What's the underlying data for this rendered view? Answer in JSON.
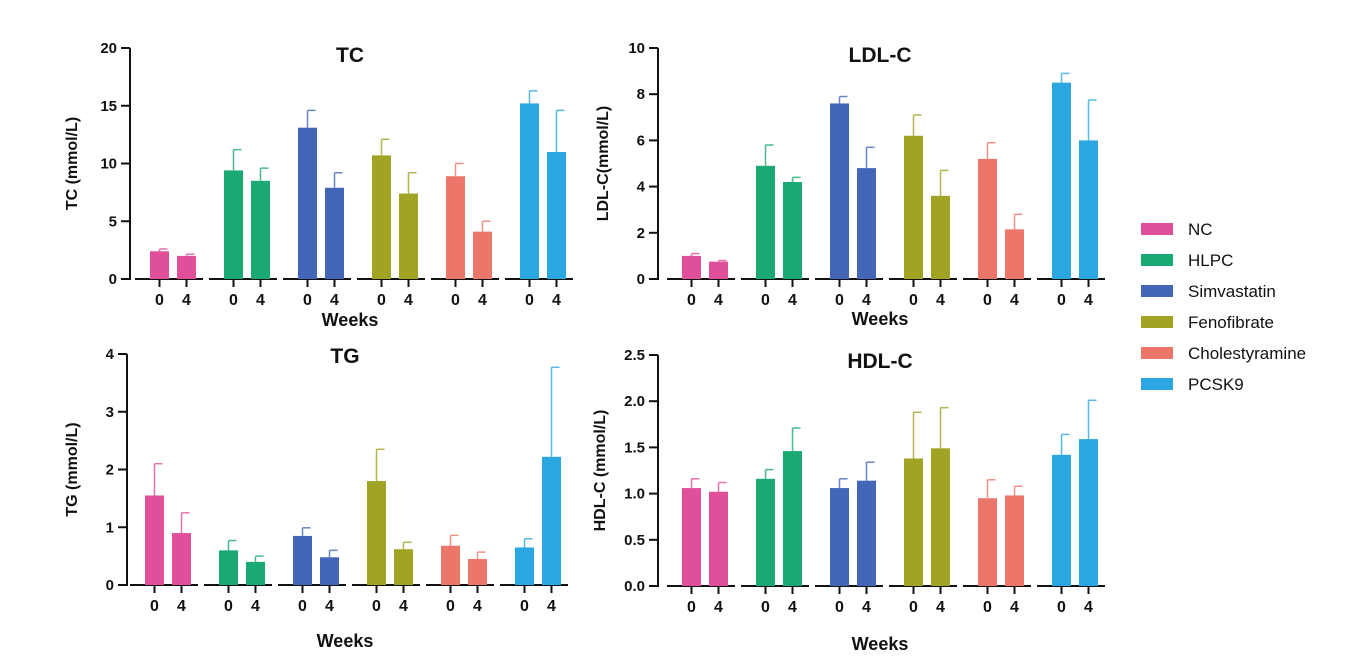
{
  "chart_data": [
    {
      "type": "bar",
      "title": "TC",
      "ylabel": "TC (mmol/L)",
      "xlabel": "Weeks",
      "ylim": [
        0,
        20
      ],
      "yticks": [
        0,
        5,
        10,
        15,
        20
      ],
      "ytick_labels": [
        "0",
        "5",
        "10",
        "15",
        "20"
      ],
      "categories": [
        "0",
        "4"
      ],
      "series": [
        {
          "name": "NC",
          "values": [
            2.4,
            2.0
          ],
          "errors": [
            0.2,
            0.15
          ]
        },
        {
          "name": "HLPC",
          "values": [
            9.4,
            8.5
          ],
          "errors": [
            1.8,
            1.1
          ]
        },
        {
          "name": "Simvastatin",
          "values": [
            13.1,
            7.9
          ],
          "errors": [
            1.5,
            1.3
          ]
        },
        {
          "name": "Fenofibrate",
          "values": [
            10.7,
            7.4
          ],
          "errors": [
            1.4,
            1.8
          ]
        },
        {
          "name": "Cholestyramine",
          "values": [
            8.9,
            4.1
          ],
          "errors": [
            1.1,
            0.9
          ]
        },
        {
          "name": "PCSK9",
          "values": [
            15.2,
            11.0
          ],
          "errors": [
            1.1,
            3.6
          ]
        }
      ]
    },
    {
      "type": "bar",
      "title": "LDL-C",
      "ylabel": "LDL-C(mmol/L)",
      "xlabel": "Weeks",
      "ylim": [
        0,
        10
      ],
      "yticks": [
        0,
        2,
        4,
        6,
        8,
        10
      ],
      "ytick_labels": [
        "0",
        "2",
        "4",
        "6",
        "8",
        "10"
      ],
      "categories": [
        "0",
        "4"
      ],
      "series": [
        {
          "name": "NC",
          "values": [
            1.0,
            0.75
          ],
          "errors": [
            0.1,
            0.05
          ]
        },
        {
          "name": "HLPC",
          "values": [
            4.9,
            4.2
          ],
          "errors": [
            0.9,
            0.2
          ]
        },
        {
          "name": "Simvastatin",
          "values": [
            7.6,
            4.8
          ],
          "errors": [
            0.3,
            0.9
          ]
        },
        {
          "name": "Fenofibrate",
          "values": [
            6.2,
            3.6
          ],
          "errors": [
            0.9,
            1.1
          ]
        },
        {
          "name": "Cholestyramine",
          "values": [
            5.2,
            2.15
          ],
          "errors": [
            0.7,
            0.65
          ]
        },
        {
          "name": "PCSK9",
          "values": [
            8.5,
            6.0
          ],
          "errors": [
            0.4,
            1.75
          ]
        }
      ]
    },
    {
      "type": "bar",
      "title": "TG",
      "ylabel": "TG (mmol/L)",
      "xlabel": "Weeks",
      "ylim": [
        0,
        4
      ],
      "yticks": [
        0,
        1,
        2,
        3,
        4
      ],
      "ytick_labels": [
        "0",
        "1",
        "2",
        "3",
        "4"
      ],
      "categories": [
        "0",
        "4"
      ],
      "series": [
        {
          "name": "NC",
          "values": [
            1.55,
            0.9
          ],
          "errors": [
            0.55,
            0.35
          ]
        },
        {
          "name": "HLPC",
          "values": [
            0.6,
            0.4
          ],
          "errors": [
            0.17,
            0.1
          ]
        },
        {
          "name": "Simvastatin",
          "values": [
            0.85,
            0.48
          ],
          "errors": [
            0.14,
            0.12
          ]
        },
        {
          "name": "Fenofibrate",
          "values": [
            1.8,
            0.62
          ],
          "errors": [
            0.55,
            0.12
          ]
        },
        {
          "name": "Cholestyramine",
          "values": [
            0.68,
            0.45
          ],
          "errors": [
            0.18,
            0.12
          ]
        },
        {
          "name": "PCSK9",
          "values": [
            0.65,
            2.22
          ],
          "errors": [
            0.15,
            1.55
          ]
        }
      ]
    },
    {
      "type": "bar",
      "title": "HDL-C",
      "ylabel": "HDL-C (mmol/L)",
      "xlabel": "Weeks",
      "ylim": [
        0,
        2.5
      ],
      "yticks": [
        0,
        0.5,
        1.0,
        1.5,
        2.0,
        2.5
      ],
      "ytick_labels": [
        "0.0",
        "0.5",
        "1.0",
        "1.5",
        "2.0",
        "2.5"
      ],
      "categories": [
        "0",
        "4"
      ],
      "series": [
        {
          "name": "NC",
          "values": [
            1.06,
            1.02
          ],
          "errors": [
            0.1,
            0.1
          ]
        },
        {
          "name": "HLPC",
          "values": [
            1.16,
            1.46
          ],
          "errors": [
            0.1,
            0.25
          ]
        },
        {
          "name": "Simvastatin",
          "values": [
            1.06,
            1.14
          ],
          "errors": [
            0.1,
            0.2
          ]
        },
        {
          "name": "Fenofibrate",
          "values": [
            1.38,
            1.49
          ],
          "errors": [
            0.5,
            0.44
          ]
        },
        {
          "name": "Cholestyramine",
          "values": [
            0.95,
            0.98
          ],
          "errors": [
            0.2,
            0.1
          ]
        },
        {
          "name": "PCSK9",
          "values": [
            1.42,
            1.59
          ],
          "errors": [
            0.22,
            0.42
          ]
        }
      ]
    }
  ],
  "legend": {
    "position": "right",
    "items": [
      {
        "label": "NC",
        "color": "#e0509a"
      },
      {
        "label": "HLPC",
        "color": "#1aa873"
      },
      {
        "label": "Simvastatin",
        "color": "#4466b8"
      },
      {
        "label": "Fenofibrate",
        "color": "#a0a323"
      },
      {
        "label": "Cholestyramine",
        "color": "#ec7669"
      },
      {
        "label": "PCSK9",
        "color": "#2aa6e0"
      }
    ]
  }
}
